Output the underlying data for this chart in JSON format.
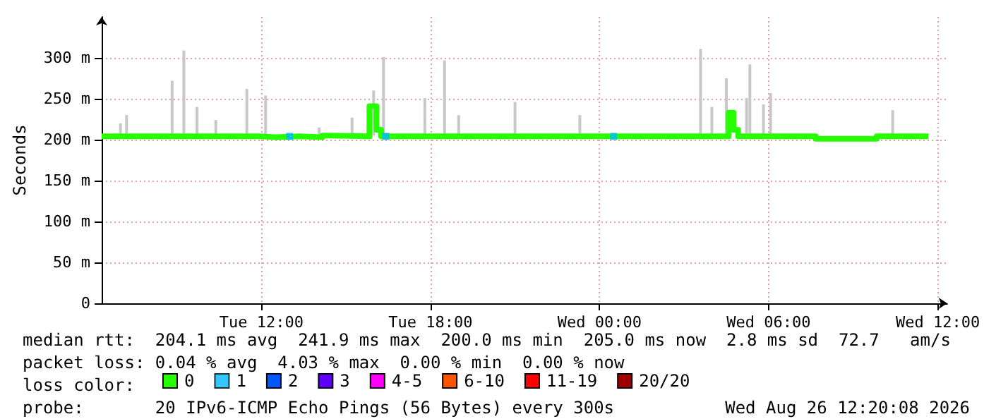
{
  "chart_data": {
    "type": "step",
    "ylabel": "Seconds",
    "xlim": [
      "2026-08-25T06:20",
      "2026-08-26T12:20"
    ],
    "xticks": [
      {
        "value": "2026-08-25T12:00",
        "label": "Tue 12:00"
      },
      {
        "value": "2026-08-25T18:00",
        "label": "Tue 18:00"
      },
      {
        "value": "2026-08-26T00:00",
        "label": "Wed 00:00"
      },
      {
        "value": "2026-08-26T06:00",
        "label": "Wed 06:00"
      },
      {
        "value": "2026-08-26T12:00",
        "label": "Wed 12:00"
      }
    ],
    "ylim": [
      0,
      350
    ],
    "yticks": [
      0,
      {
        "value": 50,
        "label": "50 m"
      },
      {
        "value": 100,
        "label": "100 m"
      },
      {
        "value": 150,
        "label": "150 m"
      },
      {
        "value": 200,
        "label": "200 m"
      },
      {
        "value": 250,
        "label": "250 m"
      },
      {
        "value": 300,
        "label": "300 m"
      }
    ],
    "grid": true,
    "legend": "bottom",
    "legend_title": "loss color:",
    "series": [
      {
        "type": "bar",
        "color": "#c8c8c8",
        "x": [
          "2026-08-25T07:00",
          "2026-08-25T07:13",
          "2026-08-25T08:50",
          "2026-08-25T09:15",
          "2026-08-25T09:43",
          "2026-08-25T10:23",
          "2026-08-25T11:29",
          "2026-08-25T12:09",
          "2026-08-25T14:03",
          "2026-08-25T15:13",
          "2026-08-25T15:59",
          "2026-08-25T16:20",
          "2026-08-25T17:48",
          "2026-08-25T18:30",
          "2026-08-25T19:00",
          "2026-08-25T21:00",
          "2026-08-25T23:18",
          "2026-08-26T03:35",
          "2026-08-26T03:59",
          "2026-08-26T04:30",
          "2026-08-26T05:13",
          "2026-08-26T05:20",
          "2026-08-26T05:49",
          "2026-08-26T06:04",
          "2026-08-26T10:24"
        ],
        "base": [
          205,
          205,
          205,
          205,
          205,
          205,
          205,
          205,
          205,
          205,
          205,
          205,
          205,
          205,
          205,
          205,
          205,
          205,
          205,
          205,
          205,
          205,
          205,
          205,
          201
        ],
        "values": [
          15,
          25,
          67,
          104,
          35,
          19,
          57,
          49,
          10,
          22,
          55,
          96,
          46,
          92,
          25,
          41,
          25,
          106,
          35,
          70,
          46,
          87,
          38,
          52,
          35
        ]
      },
      {
        "name": "0",
        "color": "#26ff00",
        "x": [
          "2026-08-25T06:20",
          "2026-08-25T11:55",
          "2026-08-25T12:30",
          "2026-08-25T13:20",
          "2026-08-25T14:10",
          "2026-08-25T14:25",
          "2026-08-25T15:50",
          "2026-08-25T16:05",
          "2026-08-25T16:15",
          "2026-08-26T04:35",
          "2026-08-26T04:45",
          "2026-08-26T04:55",
          "2026-08-26T07:40",
          "2026-08-26T09:50",
          "2026-08-26T11:40"
        ],
        "values": [
          204,
          203,
          204,
          203,
          205,
          204,
          241,
          212,
          204,
          233,
          212,
          204,
          201,
          204,
          204
        ]
      },
      {
        "type": "scatter",
        "name": "1",
        "color": "#00b8ff",
        "marker": "square",
        "x": [
          "2026-08-25T13:00",
          "2026-08-25T16:25",
          "2026-08-26T00:30"
        ],
        "values": [
          204,
          204,
          204
        ]
      },
      {
        "name": "2",
        "color": "#0059ff"
      },
      {
        "name": "3",
        "color": "#5e00ff"
      },
      {
        "name": "4-5",
        "color": "#ff00ff"
      },
      {
        "name": "6-10",
        "color": "#ff5500"
      },
      {
        "name": "11-19",
        "color": "#ff0000"
      },
      {
        "name": "20/20",
        "color": "#a10000"
      }
    ],
    "annotations": [
      "median rtt:  204.1 ms avg  241.9 ms max  200.0 ms min  205.0 ms now  2.8 ms sd  72.7   am/s",
      "packet loss: 0.04 % avg  4.03 % max  0.00 % min  0.00 % now",
      "probe:       20 IPv6-ICMP Echo Pings (56 Bytes) every 300s",
      "Wed Aug 26 12:20:08 2026"
    ]
  }
}
